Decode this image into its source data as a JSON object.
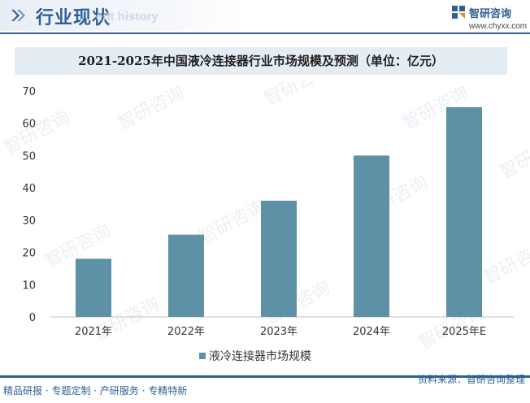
{
  "header": {
    "title": "行业现状",
    "ghost_text": "ent history"
  },
  "brand": {
    "name": "智研咨询",
    "url": "www.chyxx.com",
    "watermark": "智研咨询",
    "color": "#2e5f93"
  },
  "chart_title": "2021-2025年中国液冷连接器行业市场规模及预测（单位：亿元）",
  "chart_data": {
    "type": "bar",
    "title": "2021-2025年中国液冷连接器行业市场规模及预测（单位：亿元）",
    "categories": [
      "2021年",
      "2022年",
      "2023年",
      "2024年",
      "2025年E"
    ],
    "series": [
      {
        "name": "液冷连接器市场规模",
        "values": [
          18,
          25.5,
          36,
          50,
          65
        ],
        "color": "#5f91a6"
      }
    ],
    "xlabel": "",
    "ylabel": "",
    "ylim": [
      0,
      70
    ],
    "yticks": [
      0,
      10,
      20,
      30,
      40,
      50,
      60,
      70
    ],
    "grid": false,
    "legend_position": "bottom"
  },
  "footer": {
    "left": "精品研报 · 专题定制 · 产研服务 · 专精特新",
    "right": "资料来源：智研咨询整理"
  }
}
